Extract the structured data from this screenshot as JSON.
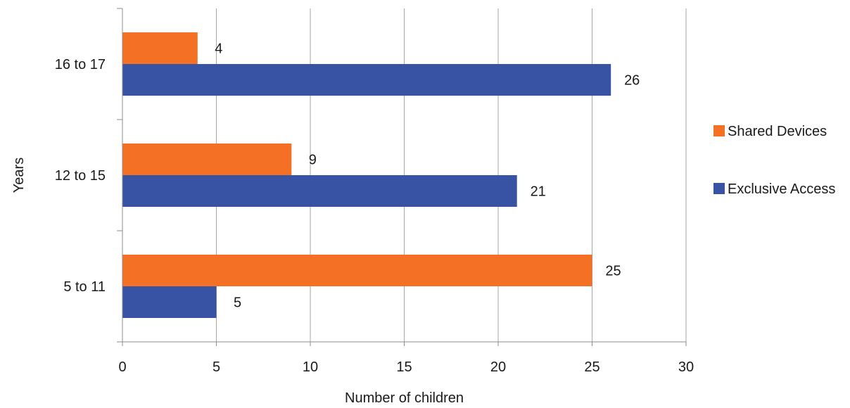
{
  "chart_data": {
    "type": "bar",
    "orientation": "horizontal",
    "categories": [
      "16 to 17",
      "12 to 15",
      "5 to 11"
    ],
    "series": [
      {
        "name": "Shared Devices",
        "color": "#f47024",
        "values": [
          4,
          9,
          25
        ]
      },
      {
        "name": "Exclusive Access",
        "color": "#3953a4",
        "values": [
          26,
          21,
          5
        ]
      }
    ],
    "xlabel": "Number of children",
    "ylabel": "Years",
    "xlim": [
      0,
      30
    ],
    "xticks": [
      0,
      5,
      10,
      15,
      20,
      25,
      30
    ],
    "grid": true,
    "legend_position": "right"
  }
}
